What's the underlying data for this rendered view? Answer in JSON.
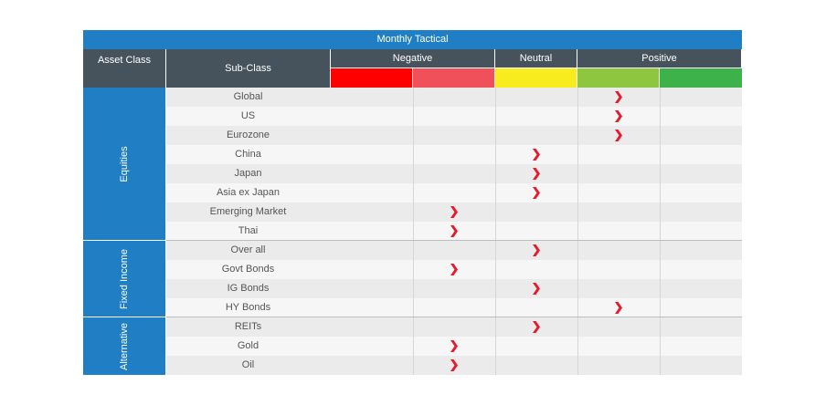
{
  "chart_data": {
    "type": "table",
    "title": "Monthly Tactical",
    "columns": {
      "asset_class": "Asset Class",
      "sub_class": "Sub-Class",
      "groups": [
        {
          "label": "Negative",
          "levels": [
            1,
            2
          ]
        },
        {
          "label": "Neutral",
          "levels": [
            3
          ]
        },
        {
          "label": "Positive",
          "levels": [
            4,
            5
          ]
        }
      ]
    },
    "scale_colors": [
      "#ff0000",
      "#f0505a",
      "#f8ec1e",
      "#8ec63f",
      "#3db24b"
    ],
    "marker_color": "#e8192c",
    "sections": [
      {
        "name": "Equities",
        "rows": [
          {
            "label": "Global",
            "level": 4
          },
          {
            "label": "US",
            "level": 4
          },
          {
            "label": "Eurozone",
            "level": 4
          },
          {
            "label": "China",
            "level": 3
          },
          {
            "label": "Japan",
            "level": 3
          },
          {
            "label": "Asia ex Japan",
            "level": 3
          },
          {
            "label": "Emerging Market",
            "level": 2
          },
          {
            "label": "Thai",
            "level": 2
          }
        ]
      },
      {
        "name": "Fixed Income",
        "rows": [
          {
            "label": "Over all",
            "level": 3
          },
          {
            "label": "Govt Bonds",
            "level": 2
          },
          {
            "label": "IG Bonds",
            "level": 3
          },
          {
            "label": "HY Bonds",
            "level": 4
          }
        ]
      },
      {
        "name": "Alternative",
        "rows": [
          {
            "label": "REITs",
            "level": 3
          },
          {
            "label": "Gold",
            "level": 2
          },
          {
            "label": "Oil",
            "level": 2
          }
        ]
      }
    ]
  }
}
